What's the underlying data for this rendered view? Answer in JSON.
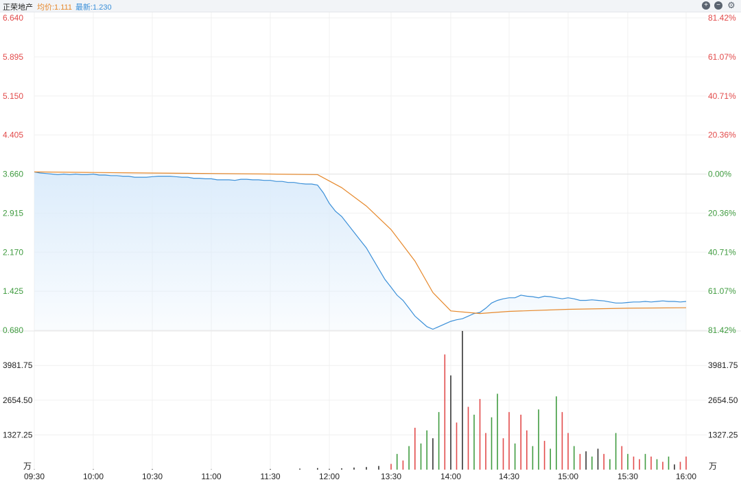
{
  "header": {
    "stock_name": "正荣地产",
    "avg_text": "均价:1.111",
    "last_text": "最新:1.230",
    "zoom_in_icon": "plus-circle-icon",
    "zoom_out_icon": "minus-circle-icon",
    "settings_icon": "gear-icon"
  },
  "colors": {
    "up": "#e24a4a",
    "down": "#3f9b3f",
    "neutral": "#333333",
    "price_line": "#3a8fd8",
    "avg_line": "#e6882b",
    "fill": "#dcecfb"
  },
  "chart_data": [
    {
      "type": "line",
      "title": "",
      "x_ticks": [
        "09:30",
        "10:00",
        "10:30",
        "11:00",
        "11:30",
        "12:00",
        "13:30",
        "14:00",
        "14:30",
        "15:00",
        "15:30",
        "16:00"
      ],
      "y_ticks_left": [
        "6.640",
        "5.895",
        "5.150",
        "4.405",
        "3.660",
        "2.915",
        "2.170",
        "1.425",
        "0.680"
      ],
      "y_ticks_right": [
        "81.42%",
        "61.07%",
        "40.71%",
        "20.36%",
        "0.00%",
        "20.36%",
        "40.71%",
        "61.07%",
        "81.42%"
      ],
      "ylim": [
        0.68,
        6.64
      ],
      "reference_price": 3.66,
      "series": [
        {
          "name": "最新",
          "x": [
            0,
            1,
            2,
            3,
            4,
            5,
            6,
            7,
            8,
            9,
            10,
            11,
            12,
            13,
            14,
            15,
            16,
            17,
            18,
            19,
            20,
            21,
            22,
            23,
            24,
            25,
            26,
            27,
            28,
            29,
            30,
            31,
            32,
            33,
            34,
            35,
            36,
            37,
            38,
            39,
            40,
            41,
            42,
            43,
            44,
            45,
            46,
            47,
            48,
            49,
            50,
            51,
            52,
            53,
            54,
            55,
            56,
            57,
            58,
            59,
            60,
            61,
            62,
            63,
            64,
            65,
            66,
            67,
            68,
            69,
            70,
            71,
            72,
            73,
            74,
            75,
            76,
            77,
            78,
            79,
            80,
            81,
            82,
            83,
            84,
            85,
            86,
            87,
            88,
            89,
            90,
            91,
            92,
            93,
            94,
            95,
            96,
            97,
            98,
            99,
            100,
            101,
            102,
            103,
            104,
            105,
            106,
            107,
            108,
            109,
            110
          ],
          "values": [
            3.7,
            3.68,
            3.67,
            3.66,
            3.65,
            3.66,
            3.65,
            3.66,
            3.65,
            3.65,
            3.66,
            3.64,
            3.64,
            3.63,
            3.63,
            3.62,
            3.62,
            3.6,
            3.6,
            3.6,
            3.61,
            3.62,
            3.62,
            3.62,
            3.61,
            3.6,
            3.6,
            3.58,
            3.58,
            3.57,
            3.57,
            3.55,
            3.55,
            3.55,
            3.54,
            3.56,
            3.56,
            3.55,
            3.55,
            3.54,
            3.54,
            3.52,
            3.52,
            3.5,
            3.5,
            3.48,
            3.47,
            3.47,
            3.45,
            3.3,
            3.1,
            2.95,
            2.85,
            2.7,
            2.55,
            2.4,
            2.25,
            2.05,
            1.85,
            1.65,
            1.5,
            1.35,
            1.25,
            1.1,
            0.95,
            0.85,
            0.75,
            0.7,
            0.75,
            0.8,
            0.85,
            0.88,
            0.9,
            0.95,
            1.0,
            1.02,
            1.1,
            1.2,
            1.25,
            1.28,
            1.3,
            1.3,
            1.35,
            1.33,
            1.32,
            1.3,
            1.33,
            1.32,
            1.3,
            1.28,
            1.3,
            1.28,
            1.25,
            1.25,
            1.26,
            1.25,
            1.24,
            1.22,
            1.2,
            1.2,
            1.21,
            1.22,
            1.22,
            1.23,
            1.22,
            1.23,
            1.24,
            1.23,
            1.23,
            1.22,
            1.23
          ]
        },
        {
          "name": "均价",
          "x": [
            0,
            10,
            20,
            30,
            40,
            48,
            52,
            56,
            60,
            64,
            67,
            70,
            75,
            80,
            90,
            100,
            110
          ],
          "values": [
            3.7,
            3.69,
            3.68,
            3.67,
            3.66,
            3.65,
            3.4,
            3.05,
            2.6,
            2.0,
            1.4,
            1.05,
            1.0,
            1.04,
            1.08,
            1.1,
            1.11
          ]
        }
      ]
    },
    {
      "type": "bar",
      "title": "",
      "y_ticks": [
        "3981.75",
        "2654.50",
        "1327.25"
      ],
      "unit": "万",
      "ylim": [
        0,
        5300
      ],
      "bars": [
        {
          "x": 0,
          "v": 10,
          "c": "neutral"
        },
        {
          "x": 10,
          "v": 15,
          "c": "neutral"
        },
        {
          "x": 20,
          "v": 20,
          "c": "neutral"
        },
        {
          "x": 30,
          "v": 10,
          "c": "neutral"
        },
        {
          "x": 40,
          "v": 25,
          "c": "neutral"
        },
        {
          "x": 45,
          "v": 40,
          "c": "neutral"
        },
        {
          "x": 48,
          "v": 60,
          "c": "neutral"
        },
        {
          "x": 50,
          "v": 30,
          "c": "neutral"
        },
        {
          "x": 52,
          "v": 50,
          "c": "neutral"
        },
        {
          "x": 54,
          "v": 80,
          "c": "neutral"
        },
        {
          "x": 56,
          "v": 100,
          "c": "neutral"
        },
        {
          "x": 58,
          "v": 140,
          "c": "neutral"
        },
        {
          "x": 60,
          "v": 220,
          "c": "up"
        },
        {
          "x": 61,
          "v": 600,
          "c": "down"
        },
        {
          "x": 62,
          "v": 350,
          "c": "up"
        },
        {
          "x": 63,
          "v": 900,
          "c": "down"
        },
        {
          "x": 64,
          "v": 1600,
          "c": "up"
        },
        {
          "x": 65,
          "v": 1000,
          "c": "down"
        },
        {
          "x": 66,
          "v": 1500,
          "c": "down"
        },
        {
          "x": 67,
          "v": 1200,
          "c": "neutral"
        },
        {
          "x": 68,
          "v": 2200,
          "c": "down"
        },
        {
          "x": 69,
          "v": 4400,
          "c": "up"
        },
        {
          "x": 70,
          "v": 3600,
          "c": "neutral"
        },
        {
          "x": 71,
          "v": 1800,
          "c": "up"
        },
        {
          "x": 72,
          "v": 5300,
          "c": "neutral"
        },
        {
          "x": 73,
          "v": 2400,
          "c": "up"
        },
        {
          "x": 74,
          "v": 2100,
          "c": "down"
        },
        {
          "x": 75,
          "v": 2700,
          "c": "up"
        },
        {
          "x": 76,
          "v": 1400,
          "c": "up"
        },
        {
          "x": 77,
          "v": 2000,
          "c": "down"
        },
        {
          "x": 78,
          "v": 2900,
          "c": "down"
        },
        {
          "x": 79,
          "v": 1200,
          "c": "up"
        },
        {
          "x": 80,
          "v": 2200,
          "c": "up"
        },
        {
          "x": 81,
          "v": 1000,
          "c": "down"
        },
        {
          "x": 82,
          "v": 2100,
          "c": "up"
        },
        {
          "x": 83,
          "v": 1500,
          "c": "up"
        },
        {
          "x": 84,
          "v": 900,
          "c": "down"
        },
        {
          "x": 85,
          "v": 2300,
          "c": "down"
        },
        {
          "x": 86,
          "v": 1100,
          "c": "up"
        },
        {
          "x": 87,
          "v": 800,
          "c": "down"
        },
        {
          "x": 88,
          "v": 2800,
          "c": "down"
        },
        {
          "x": 89,
          "v": 2200,
          "c": "up"
        },
        {
          "x": 90,
          "v": 1400,
          "c": "up"
        },
        {
          "x": 91,
          "v": 900,
          "c": "down"
        },
        {
          "x": 92,
          "v": 600,
          "c": "up"
        },
        {
          "x": 93,
          "v": 700,
          "c": "neutral"
        },
        {
          "x": 94,
          "v": 500,
          "c": "down"
        },
        {
          "x": 95,
          "v": 800,
          "c": "neutral"
        },
        {
          "x": 96,
          "v": 600,
          "c": "up"
        },
        {
          "x": 97,
          "v": 400,
          "c": "down"
        },
        {
          "x": 98,
          "v": 1400,
          "c": "down"
        },
        {
          "x": 99,
          "v": 900,
          "c": "up"
        },
        {
          "x": 100,
          "v": 600,
          "c": "down"
        },
        {
          "x": 101,
          "v": 500,
          "c": "up"
        },
        {
          "x": 102,
          "v": 400,
          "c": "up"
        },
        {
          "x": 103,
          "v": 600,
          "c": "down"
        },
        {
          "x": 104,
          "v": 500,
          "c": "up"
        },
        {
          "x": 105,
          "v": 400,
          "c": "down"
        },
        {
          "x": 106,
          "v": 300,
          "c": "up"
        },
        {
          "x": 107,
          "v": 500,
          "c": "down"
        },
        {
          "x": 108,
          "v": 200,
          "c": "neutral"
        },
        {
          "x": 109,
          "v": 300,
          "c": "up"
        },
        {
          "x": 110,
          "v": 500,
          "c": "up"
        }
      ]
    }
  ]
}
